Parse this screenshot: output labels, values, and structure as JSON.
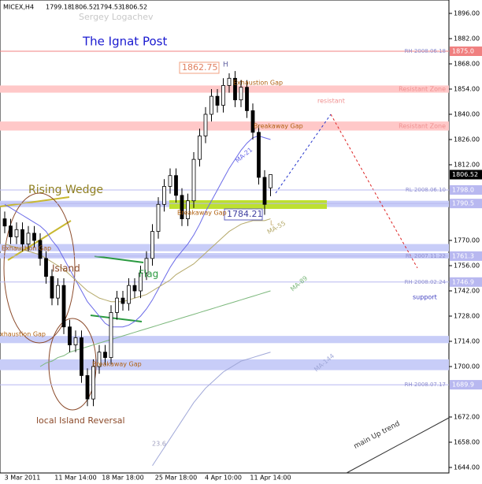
{
  "chart_data": {
    "type": "candlestick",
    "symbol": "MICEX,H4",
    "watermark": "Sergey Logachev",
    "title": "The Ignat Post",
    "categories": [
      null,
      null,
      null,
      "3 Mar 2011",
      null,
      null,
      null,
      null,
      null,
      null,
      null,
      null,
      "11 Mar 14:00",
      null,
      null,
      null,
      null,
      null,
      null,
      null,
      "18 Mar 18:00",
      null,
      null,
      null,
      null,
      null,
      null,
      null,
      null,
      "25 Mar 18:00",
      null,
      null,
      null,
      null,
      null,
      null,
      null,
      "4 Apr 10:00",
      null,
      null,
      null,
      null,
      null,
      null,
      null,
      "11 Apr 14:00"
    ],
    "open": [
      1782,
      1778,
      1772,
      1776,
      1768,
      1774,
      1770,
      1760,
      1750,
      1738,
      1745,
      1722,
      1712,
      1716,
      1695,
      1682,
      1700,
      1708,
      1705,
      1730,
      1738,
      1735,
      1745,
      1742,
      1752,
      1760,
      1775,
      1790,
      1800,
      1806,
      1795,
      1782,
      1792,
      1815,
      1828,
      1840,
      1850,
      1845,
      1856,
      1860,
      1848,
      1855,
      1842,
      1830,
      1805,
      1799.18
    ],
    "high": [
      1786,
      1782,
      1780,
      1780,
      1778,
      1778,
      1774,
      1764,
      1754,
      1749,
      1749,
      1726,
      1720,
      1720,
      1699,
      1704,
      1712,
      1712,
      1734,
      1742,
      1742,
      1749,
      1749,
      1756,
      1764,
      1779,
      1794,
      1804,
      1810,
      1810,
      1799,
      1796,
      1819,
      1832,
      1844,
      1854,
      1854,
      1860,
      1862.75,
      1864,
      1859,
      1859,
      1846,
      1834,
      1809,
      1806.52
    ],
    "low": [
      1774,
      1768,
      1768,
      1764,
      1764,
      1766,
      1756,
      1746,
      1734,
      1734,
      1718,
      1708,
      1708,
      1691,
      1678,
      1678,
      1696,
      1701,
      1701,
      1726,
      1731,
      1731,
      1738,
      1738,
      1748,
      1756,
      1771,
      1786,
      1796,
      1791,
      1778,
      1778,
      1788,
      1811,
      1824,
      1836,
      1841,
      1841,
      1852,
      1844,
      1844,
      1838,
      1826,
      1801,
      1784.21,
      1794.53
    ],
    "close": [
      1778,
      1772,
      1776,
      1768,
      1774,
      1770,
      1760,
      1750,
      1738,
      1745,
      1722,
      1712,
      1716,
      1695,
      1682,
      1700,
      1708,
      1705,
      1730,
      1738,
      1735,
      1745,
      1742,
      1752,
      1760,
      1775,
      1790,
      1800,
      1806,
      1795,
      1782,
      1792,
      1815,
      1828,
      1840,
      1850,
      1845,
      1856,
      1860,
      1848,
      1855,
      1842,
      1830,
      1805,
      1790,
      1806.52
    ],
    "series": [
      {
        "name": "MA-21",
        "color": "#6a6ae8",
        "values": [
          1790,
          1788,
          1786,
          1784,
          1782,
          1780,
          1778,
          1775,
          1770,
          1766,
          1760,
          1754,
          1748,
          1742,
          1736,
          1732,
          1728,
          1724,
          1722,
          1722,
          1722,
          1723,
          1725,
          1728,
          1732,
          1737,
          1743,
          1749,
          1755,
          1760,
          1764,
          1768,
          1773,
          1779,
          1786,
          1792,
          1798,
          1804,
          1810,
          1815,
          1820,
          1824,
          1827,
          1828,
          1827,
          1826
        ]
      },
      {
        "name": "MA-55",
        "color": "#b5a96a",
        "values": [
          1768,
          1767,
          1766,
          1765,
          1764,
          1763,
          1762,
          1760,
          1758,
          1756,
          1754,
          1751,
          1748,
          1745,
          1742,
          1740,
          1738,
          1737,
          1736,
          1736,
          1736,
          1737,
          1738,
          1739,
          1740,
          1742,
          1744,
          1746,
          1748,
          1751,
          1753,
          1755,
          1757,
          1760,
          1763,
          1766,
          1769,
          1772,
          1775,
          1777,
          1779,
          1780,
          1781,
          1781,
          1781,
          1782
        ]
      },
      {
        "name": "MA-89",
        "color": "#7cb87c",
        "values": [
          null,
          null,
          null,
          null,
          null,
          null,
          1700,
          1702,
          1703,
          1705,
          1706,
          1708,
          1709,
          1710,
          1711,
          1712,
          1713,
          1714,
          1715,
          1716,
          1717,
          1718,
          1719,
          1720,
          1721,
          1722,
          1723,
          1724,
          1725,
          1726,
          1727,
          1728,
          1729,
          1730,
          1731,
          1732,
          1733,
          1734,
          1735,
          1736,
          1737,
          1738,
          1739,
          1740,
          1741,
          1742
        ]
      },
      {
        "name": "MA-144",
        "color": "#a0a8d8",
        "values": [
          null,
          null,
          null,
          null,
          null,
          null,
          null,
          null,
          null,
          null,
          null,
          null,
          null,
          null,
          null,
          null,
          null,
          null,
          null,
          null,
          null,
          null,
          null,
          null,
          null,
          1645,
          1650,
          1655,
          1660,
          1665,
          1670,
          1675,
          1680,
          1684,
          1688,
          1691,
          1694,
          1697,
          1699,
          1701,
          1703,
          1704,
          1705,
          1706,
          1707,
          1708
        ]
      }
    ],
    "ylim": [
      1644,
      1896
    ],
    "yticks": [
      {
        "value": 1896,
        "label": "1896.00"
      },
      {
        "value": 1882,
        "label": "1882.00"
      },
      {
        "value": 1868,
        "label": "1868.00"
      },
      {
        "value": 1854,
        "label": "1854.00"
      },
      {
        "value": 1840,
        "label": "1840.00"
      },
      {
        "value": 1826,
        "label": "1826.00"
      },
      {
        "value": 1812,
        "label": "1812.00"
      },
      {
        "value": 1770,
        "label": "1770.00"
      },
      {
        "value": 1756,
        "label": "1756.00"
      },
      {
        "value": 1742,
        "label": "1742.00"
      },
      {
        "value": 1728,
        "label": "1728.00"
      },
      {
        "value": 1714,
        "label": "1714.00"
      },
      {
        "value": 1700,
        "label": "1700.00"
      },
      {
        "value": 1672,
        "label": "1672.00"
      },
      {
        "value": 1658,
        "label": "1658.00"
      },
      {
        "value": 1644,
        "label": "1644.00"
      }
    ],
    "levels": [
      {
        "value": 1875,
        "label": "1875.0",
        "note": "RH 2008.06.18",
        "color": "#f08080"
      },
      {
        "value": 1798,
        "label": "1798.0",
        "note": "RL 2008.06.10",
        "color": "#b8b8f0"
      },
      {
        "value": 1790.5,
        "label": "1790.5",
        "color": "#b8b8f0"
      },
      {
        "value": 1761.3,
        "label": "1761.3",
        "note": "RL 2007.11.22",
        "color": "#b8b8f0"
      },
      {
        "value": 1746.9,
        "label": "1746.9",
        "note": "RH 2008.02.24",
        "color": "#b8b8f0"
      },
      {
        "value": 1689.9,
        "label": "1689.9",
        "note": "RH 2008.07.17",
        "color": "#b8b8f0"
      }
    ],
    "zones": [
      {
        "from": 1852,
        "to": 1856,
        "color": "#ffc8c8",
        "label": "Resistant Zone"
      },
      {
        "from": 1831,
        "to": 1836,
        "color": "#ffc8c8",
        "label": "Resistant Zone"
      },
      {
        "from": 1788.5,
        "to": 1792,
        "color": "#c8cdf8"
      },
      {
        "from": 1764,
        "to": 1768,
        "color": "#c8cdf8"
      },
      {
        "from": 1760,
        "to": 1763,
        "color": "#c8cdf8"
      },
      {
        "from": 1713,
        "to": 1717,
        "color": "#c8cdf8"
      },
      {
        "from": 1698,
        "to": 1704,
        "color": "#c8cdf8"
      }
    ],
    "annotations": [
      "H",
      "Exhaustion Gap",
      "resistant",
      "Breakaway Gap",
      "Breakaway Gap",
      "L",
      "Rising Wedge",
      "Exhaustion Gap",
      "Island",
      "Flag",
      "xhaustion Gap",
      "Breakaway Gap",
      "local Island Reversal",
      "support",
      "main Up trend",
      "23.6"
    ]
  }
}
